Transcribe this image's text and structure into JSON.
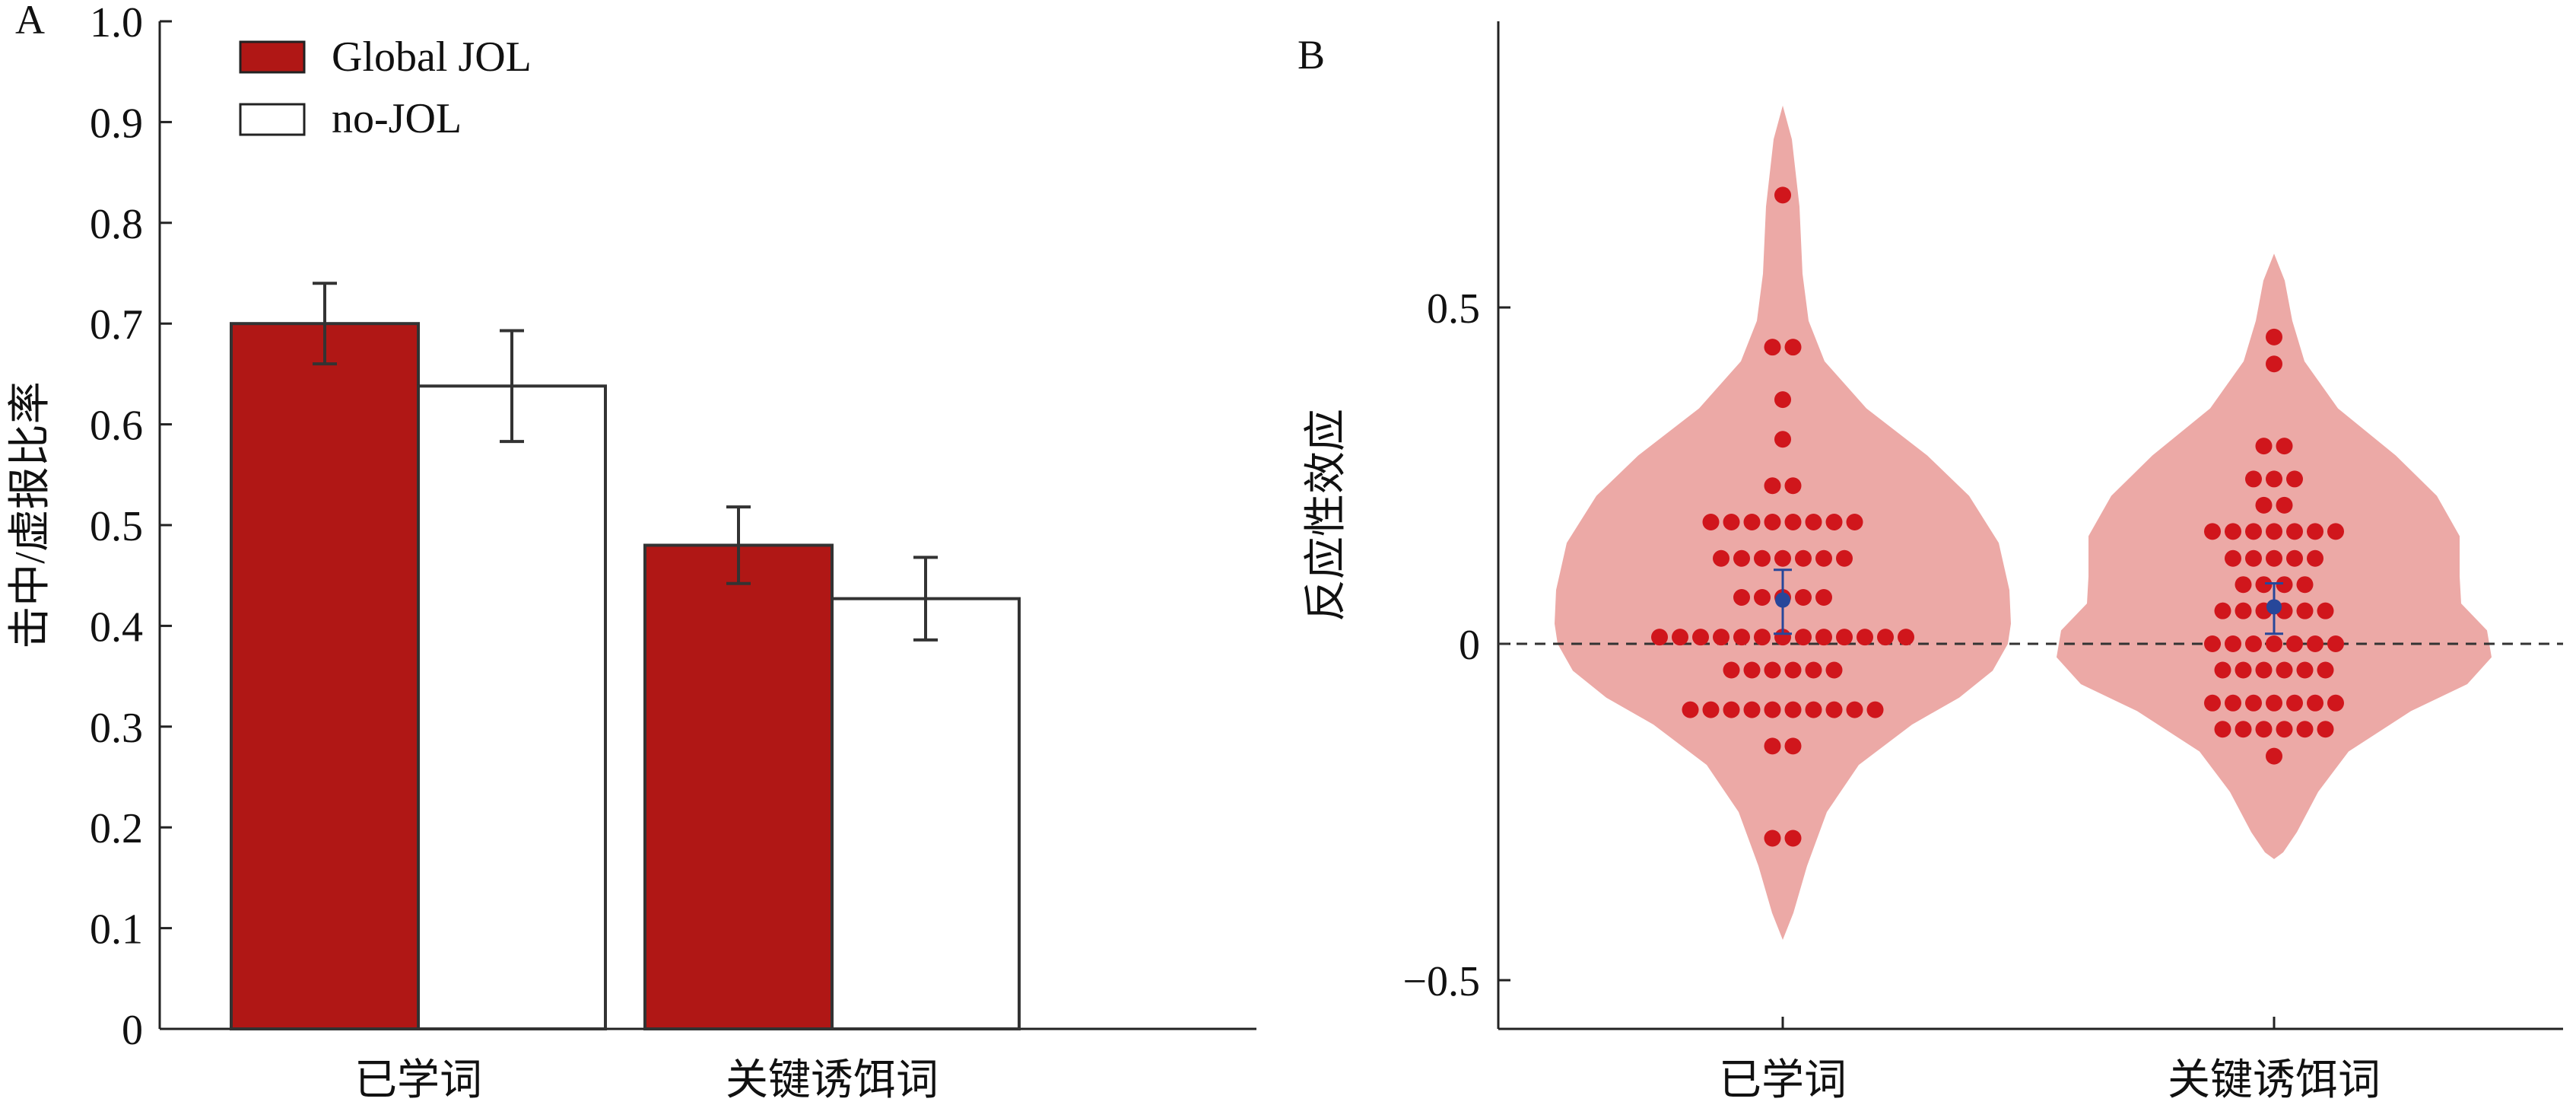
{
  "chart_data": [
    {
      "panel": "A",
      "type": "bar",
      "categories": [
        "已学词",
        "关键诱饵词"
      ],
      "series": [
        {
          "name": "Global JOL",
          "values": [
            0.7,
            0.48
          ],
          "error": [
            0.04,
            0.038
          ],
          "color": "#b01715"
        },
        {
          "name": "no-JOL",
          "values": [
            0.638,
            0.427
          ],
          "error": [
            0.055,
            0.041
          ],
          "color": "#ffffff"
        }
      ],
      "ylabel": "击中/虚报比率",
      "ylim": [
        0,
        1.0
      ],
      "yticks": [
        "0",
        "0.1",
        "0.2",
        "0.3",
        "0.4",
        "0.5",
        "0.6",
        "0.7",
        "0.8",
        "0.9",
        "1.0"
      ],
      "legend_position": "top-left",
      "grid": false
    },
    {
      "panel": "B",
      "type": "scatter",
      "subtype": "violin-swarm",
      "categories": [
        "已学词",
        "关键诱饵词"
      ],
      "ylabel": "反应性效应",
      "ylim": [
        -0.57,
        0.93
      ],
      "yticks": [
        "−0.5",
        "0",
        "0.5"
      ],
      "reference_line": 0,
      "violin_color": "#eca9a6",
      "point_color": "#d0161c",
      "mean_color": "#27479a",
      "groups": [
        {
          "category": "已学词",
          "mean": 0.065,
          "ci": [
            0.015,
            0.11
          ],
          "points": [
            0.667,
            0.441,
            0.441,
            0.363,
            0.304,
            0.235,
            0.235,
            0.181,
            0.181,
            0.181,
            0.181,
            0.181,
            0.181,
            0.181,
            0.181,
            0.127,
            0.127,
            0.127,
            0.127,
            0.127,
            0.127,
            0.127,
            0.069,
            0.069,
            0.069,
            0.069,
            0.069,
            0.01,
            0.01,
            0.01,
            0.01,
            0.01,
            0.01,
            0.01,
            0.01,
            0.01,
            0.01,
            0.01,
            0.01,
            0.01,
            -0.039,
            -0.039,
            -0.039,
            -0.039,
            -0.039,
            -0.039,
            -0.098,
            -0.098,
            -0.098,
            -0.098,
            -0.098,
            -0.098,
            -0.098,
            -0.098,
            -0.098,
            -0.098,
            -0.152,
            -0.152,
            -0.289,
            -0.289
          ]
        },
        {
          "category": "关键诱饵词",
          "mean": 0.055,
          "ci": [
            0.015,
            0.09
          ],
          "points": [
            0.456,
            0.416,
            0.294,
            0.294,
            0.245,
            0.245,
            0.245,
            0.206,
            0.206,
            0.167,
            0.167,
            0.167,
            0.167,
            0.167,
            0.167,
            0.167,
            0.127,
            0.127,
            0.127,
            0.127,
            0.127,
            0.088,
            0.088,
            0.088,
            0.088,
            0.049,
            0.049,
            0.049,
            0.049,
            0.049,
            0.049,
            0.0,
            0.0,
            0.0,
            0.0,
            0.0,
            0.0,
            0.0,
            -0.039,
            -0.039,
            -0.039,
            -0.039,
            -0.039,
            -0.039,
            -0.088,
            -0.088,
            -0.088,
            -0.088,
            -0.088,
            -0.088,
            -0.088,
            -0.127,
            -0.127,
            -0.127,
            -0.127,
            -0.127,
            -0.127,
            -0.167
          ]
        }
      ],
      "grid": false
    }
  ]
}
